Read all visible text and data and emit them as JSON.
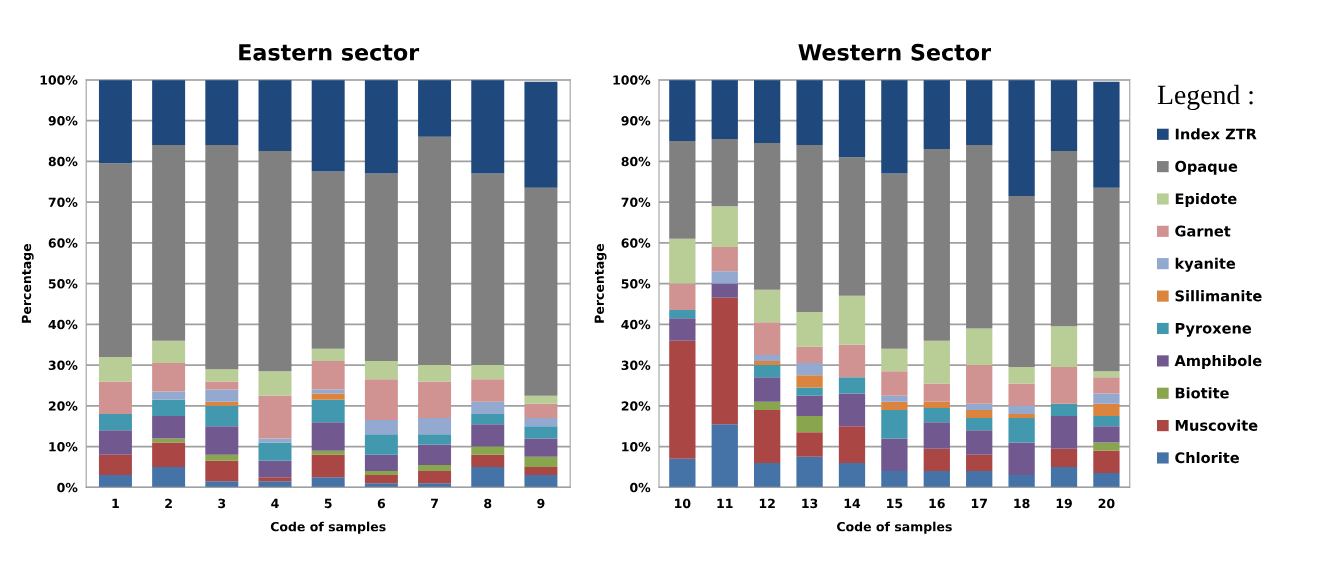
{
  "chart_data": [
    {
      "type": "bar",
      "stacked": true,
      "title": "Eastern sector",
      "xlabel": "Code of samples",
      "ylabel": "Percentage",
      "categories": [
        "1",
        "2",
        "3",
        "4",
        "5",
        "6",
        "7",
        "8",
        "9"
      ],
      "ylim": [
        0,
        100
      ],
      "yticks": [
        {
          "value": 0,
          "label": "0%"
        },
        {
          "value": 10,
          "label": "10%"
        },
        {
          "value": 20,
          "label": "20%"
        },
        {
          "value": 30,
          "label": "30%"
        },
        {
          "value": 40,
          "label": "40%"
        },
        {
          "value": 50,
          "label": "50%"
        },
        {
          "value": 60,
          "label": "60%"
        },
        {
          "value": 70,
          "label": "70%"
        },
        {
          "value": 80,
          "label": "80%"
        },
        {
          "value": 90,
          "label": "90%"
        },
        {
          "value": 100,
          "label": "100%"
        }
      ],
      "grid": "y",
      "series": [
        {
          "color": "#4572a7",
          "values": [
            3,
            5,
            1.5,
            1.5,
            2.5,
            1,
            1,
            5,
            3
          ]
        },
        {
          "color": "#aa4643",
          "values": [
            5,
            6,
            5,
            1,
            5.5,
            2,
            3,
            3,
            2
          ]
        },
        {
          "color": "#89a54e",
          "values": [
            0,
            1,
            1.5,
            0,
            1,
            1,
            1.5,
            2,
            2.5
          ]
        },
        {
          "color": "#71588f",
          "values": [
            6,
            5.5,
            7,
            4,
            7,
            4,
            5,
            5.5,
            4.5
          ]
        },
        {
          "color": "#4198af",
          "values": [
            4,
            4,
            5,
            4.5,
            5.5,
            5,
            2.5,
            2.5,
            3
          ]
        },
        {
          "color": "#db843d",
          "values": [
            0,
            0,
            1,
            0,
            1.5,
            0,
            0,
            0,
            0
          ]
        },
        {
          "color": "#93a9cf",
          "values": [
            0,
            2,
            3,
            1,
            1,
            3.5,
            4,
            3,
            2
          ]
        },
        {
          "color": "#d19392",
          "values": [
            8,
            7,
            2,
            10.5,
            7,
            10,
            9,
            5.5,
            3.5
          ]
        },
        {
          "color": "#b9cd96",
          "values": [
            6,
            5.5,
            3,
            6,
            3,
            4.5,
            4,
            3.5,
            2
          ]
        },
        {
          "color": "#808080",
          "values": [
            47.5,
            48,
            55,
            54,
            43.5,
            46,
            56,
            47,
            51
          ]
        },
        {
          "color": "#1f497d",
          "values": [
            20.5,
            16,
            16,
            17.5,
            22.5,
            23,
            14,
            23,
            26
          ]
        }
      ]
    },
    {
      "type": "bar",
      "stacked": true,
      "title": "Western Sector",
      "xlabel": "Code of samples",
      "ylabel": "Percentage",
      "categories": [
        "10",
        "11",
        "12",
        "13",
        "14",
        "15",
        "16",
        "17",
        "18",
        "19",
        "20"
      ],
      "ylim": [
        0,
        100
      ],
      "yticks": [
        {
          "value": 0,
          "label": "0%"
        },
        {
          "value": 10,
          "label": "10%"
        },
        {
          "value": 20,
          "label": "20%"
        },
        {
          "value": 30,
          "label": "30%"
        },
        {
          "value": 40,
          "label": "40%"
        },
        {
          "value": 50,
          "label": "50%"
        },
        {
          "value": 60,
          "label": "60%"
        },
        {
          "value": 70,
          "label": "70%"
        },
        {
          "value": 80,
          "label": "80%"
        },
        {
          "value": 90,
          "label": "90%"
        },
        {
          "value": 100,
          "label": "100%"
        }
      ],
      "grid": "y",
      "legend": "right",
      "legend_title": "Legend :",
      "series": [
        {
          "name": "Chlorite",
          "color": "#4572a7",
          "values": [
            7,
            15.5,
            6,
            7.5,
            6,
            4,
            4,
            4,
            3,
            5,
            3.5
          ]
        },
        {
          "name": "Muscovite",
          "color": "#aa4643",
          "values": [
            29,
            31,
            13,
            6,
            9,
            0,
            5.5,
            4,
            0,
            4.5,
            5.5
          ]
        },
        {
          "name": "Biotite",
          "color": "#89a54e",
          "values": [
            0,
            0,
            2,
            4,
            0,
            0,
            0,
            0,
            0,
            0,
            2
          ]
        },
        {
          "name": "Amphibole",
          "color": "#71588f",
          "values": [
            5.5,
            3.5,
            6,
            5,
            8,
            8,
            6.5,
            6,
            8,
            8,
            4
          ]
        },
        {
          "name": "Pyroxene",
          "color": "#4198af",
          "values": [
            2,
            0,
            3,
            2,
            4,
            7,
            3.5,
            3,
            6,
            3,
            2.5
          ]
        },
        {
          "name": "Sillimanite",
          "color": "#db843d",
          "values": [
            0,
            0,
            1,
            3,
            0,
            2,
            1.5,
            2,
            1,
            0,
            3
          ]
        },
        {
          "name": "kyanite",
          "color": "#93a9cf",
          "values": [
            0,
            3,
            1.5,
            3,
            0,
            1.5,
            0,
            1.5,
            2,
            0,
            2.5
          ]
        },
        {
          "name": "Garnet",
          "color": "#d19392",
          "values": [
            6.5,
            6,
            8,
            4,
            8,
            6,
            4.5,
            9.5,
            5.5,
            9,
            4
          ]
        },
        {
          "name": "Epidote",
          "color": "#b9cd96",
          "values": [
            11,
            10,
            8,
            8.5,
            12,
            5.5,
            10.5,
            9,
            4,
            10,
            1.5
          ]
        },
        {
          "name": "Opaque",
          "color": "#808080",
          "values": [
            24,
            16.5,
            36,
            41,
            34,
            43,
            47,
            45,
            42,
            43,
            45
          ]
        },
        {
          "name": "Index ZTR",
          "color": "#1f497d",
          "values": [
            15,
            14.5,
            15.5,
            16,
            19,
            23,
            17,
            16,
            28.5,
            17.5,
            26
          ]
        }
      ]
    }
  ]
}
